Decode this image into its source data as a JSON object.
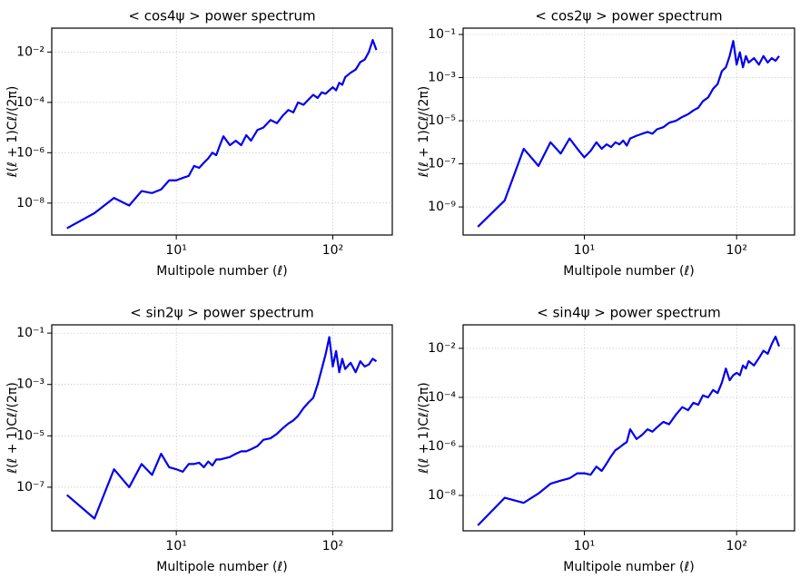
{
  "chart_data": [
    {
      "type": "line",
      "title": "< cos4ψ >  power spectrum",
      "xlabel": "Multipole number (ℓ)",
      "ylabel": "ℓ(ℓ + 1)Cℓ/(2π)",
      "log_x": true,
      "log_y": true,
      "grid": true,
      "x": [
        2,
        3,
        4,
        5,
        6,
        7,
        8,
        9,
        10,
        11,
        12,
        13,
        14,
        15,
        16,
        17,
        18,
        19,
        20,
        22,
        24,
        26,
        28,
        30,
        33,
        36,
        40,
        44,
        48,
        52,
        56,
        60,
        65,
        70,
        75,
        80,
        85,
        90,
        95,
        100,
        105,
        110,
        115,
        120,
        130,
        140,
        150,
        160,
        170,
        180,
        190
      ],
      "series": [
        {
          "name": "cos4",
          "color": "#0000ee",
          "values": [
            1e-09,
            4e-09,
            1.6e-08,
            8e-09,
            3e-08,
            2.5e-08,
            3.5e-08,
            8e-08,
            8e-08,
            1e-07,
            1.2e-07,
            3e-07,
            2.5e-07,
            4e-07,
            6e-07,
            1e-06,
            8e-07,
            2e-06,
            4.5e-06,
            2e-06,
            3e-06,
            2e-06,
            5e-06,
            3e-06,
            8e-06,
            1e-05,
            2e-05,
            1.5e-05,
            3e-05,
            5e-05,
            4e-05,
            0.0001,
            8e-05,
            0.00013,
            0.0002,
            0.00015,
            0.00025,
            0.00022,
            0.0003,
            0.0004,
            0.0003,
            0.0006,
            0.0005,
            0.001,
            0.0015,
            0.002,
            0.004,
            0.005,
            0.01,
            0.03,
            0.012
          ]
        }
      ],
      "xlim": [
        1.6,
        240
      ],
      "xticks": [
        {
          "value": 10,
          "label": "10¹"
        },
        {
          "value": 100,
          "label": "10²"
        }
      ],
      "ylim": [
        5.4e-10,
        0.089
      ],
      "yticks": [
        {
          "value": 0.01,
          "label": "10⁻²"
        },
        {
          "value": 0.0001,
          "label": "10⁻⁴"
        },
        {
          "value": 1e-06,
          "label": "10⁻⁶"
        },
        {
          "value": 1e-08,
          "label": "10⁻⁸"
        }
      ]
    },
    {
      "type": "line",
      "title": "< cos2ψ >  power spectrum",
      "xlabel": "Multipole number (ℓ)",
      "ylabel": "ℓ(ℓ + 1)Cℓ/(2π)",
      "log_x": true,
      "log_y": true,
      "grid": true,
      "x": [
        2,
        3,
        4,
        5,
        6,
        7,
        8,
        9,
        10,
        11,
        12,
        13,
        14,
        15,
        16,
        17,
        18,
        19,
        20,
        22,
        24,
        26,
        28,
        30,
        33,
        36,
        40,
        44,
        48,
        52,
        56,
        60,
        65,
        70,
        75,
        80,
        85,
        90,
        95,
        100,
        105,
        110,
        115,
        120,
        130,
        140,
        150,
        160,
        170,
        180,
        190
      ],
      "series": [
        {
          "name": "cos2",
          "color": "#0000ee",
          "values": [
            1.2e-10,
            2e-09,
            5e-07,
            8e-08,
            1e-06,
            3e-07,
            1.5e-06,
            5e-07,
            2e-07,
            4e-07,
            1e-06,
            5e-07,
            8e-07,
            6e-07,
            1e-06,
            8e-07,
            1.2e-06,
            7e-07,
            1.5e-06,
            2e-06,
            2.5e-06,
            3e-06,
            2.5e-06,
            4e-06,
            5e-06,
            8e-06,
            1e-05,
            1.5e-05,
            2e-05,
            3e-05,
            4e-05,
            8e-05,
            0.00012,
            0.0003,
            0.0005,
            0.002,
            0.003,
            0.01,
            0.05,
            0.004,
            0.015,
            0.003,
            0.01,
            0.005,
            0.008,
            0.004,
            0.01,
            0.005,
            0.008,
            0.006,
            0.01
          ]
        }
      ],
      "xlim": [
        1.6,
        240
      ],
      "xticks": [
        {
          "value": 10,
          "label": "10¹"
        },
        {
          "value": 100,
          "label": "10²"
        }
      ],
      "ylim": [
        5e-11,
        0.197
      ],
      "yticks": [
        {
          "value": 0.1,
          "label": "10⁻¹"
        },
        {
          "value": 0.001,
          "label": "10⁻³"
        },
        {
          "value": 1e-05,
          "label": "10⁻⁵"
        },
        {
          "value": 1e-07,
          "label": "10⁻⁷"
        },
        {
          "value": 1e-09,
          "label": "10⁻⁹"
        }
      ]
    },
    {
      "type": "line",
      "title": "< sin2ψ >  power spectrum",
      "xlabel": "Multipole number (ℓ)",
      "ylabel": "ℓ(ℓ + 1)Cℓ/(2π)",
      "log_x": true,
      "log_y": true,
      "grid": true,
      "x": [
        2,
        3,
        4,
        5,
        6,
        7,
        8,
        9,
        10,
        11,
        12,
        13,
        14,
        15,
        16,
        17,
        18,
        19,
        20,
        22,
        24,
        26,
        28,
        30,
        33,
        36,
        40,
        44,
        48,
        52,
        56,
        60,
        65,
        70,
        75,
        80,
        85,
        90,
        95,
        100,
        105,
        110,
        115,
        120,
        130,
        140,
        150,
        160,
        170,
        180,
        190
      ],
      "series": [
        {
          "name": "sin2",
          "color": "#0000ee",
          "values": [
            5e-08,
            6e-09,
            5e-07,
            1e-07,
            8e-07,
            3e-07,
            2e-06,
            6e-07,
            5e-07,
            4e-07,
            8e-07,
            8e-07,
            9e-07,
            6e-07,
            1e-06,
            7e-07,
            1.2e-06,
            1.2e-06,
            1.3e-06,
            1.5e-06,
            2e-06,
            2.5e-06,
            2.5e-06,
            3e-06,
            4e-06,
            7e-06,
            8e-06,
            1.2e-05,
            2e-05,
            3e-05,
            4e-05,
            6e-05,
            0.00012,
            0.0002,
            0.0003,
            0.001,
            0.004,
            0.015,
            0.07,
            0.005,
            0.02,
            0.003,
            0.01,
            0.004,
            0.007,
            0.003,
            0.008,
            0.005,
            0.006,
            0.01,
            0.008
          ]
        }
      ],
      "xlim": [
        1.6,
        240
      ],
      "xticks": [
        {
          "value": 10,
          "label": "10¹"
        },
        {
          "value": 100,
          "label": "10²"
        }
      ],
      "ylim": [
        2e-09,
        0.21
      ],
      "yticks": [
        {
          "value": 0.1,
          "label": "10⁻¹"
        },
        {
          "value": 0.001,
          "label": "10⁻³"
        },
        {
          "value": 1e-05,
          "label": "10⁻⁵"
        },
        {
          "value": 1e-07,
          "label": "10⁻⁷"
        }
      ]
    },
    {
      "type": "line",
      "title": "< sin4ψ >  power spectrum",
      "xlabel": "Multipole number (ℓ)",
      "ylabel": "ℓ(ℓ + 1)Cℓ/(2π)",
      "log_x": true,
      "log_y": true,
      "grid": true,
      "x": [
        2,
        3,
        4,
        5,
        6,
        7,
        8,
        9,
        10,
        11,
        12,
        13,
        14,
        15,
        16,
        17,
        18,
        19,
        20,
        22,
        24,
        26,
        28,
        30,
        33,
        36,
        40,
        44,
        48,
        52,
        56,
        60,
        65,
        70,
        75,
        80,
        85,
        90,
        95,
        100,
        105,
        110,
        115,
        120,
        130,
        140,
        150,
        160,
        170,
        180,
        190
      ],
      "series": [
        {
          "name": "sin4",
          "color": "#0000ee",
          "values": [
            6e-10,
            8e-09,
            5e-09,
            1.2e-08,
            3e-08,
            4e-08,
            5e-08,
            8e-08,
            8e-08,
            7e-08,
            1.5e-07,
            1e-07,
            2e-07,
            4e-07,
            7e-07,
            9e-07,
            1.2e-06,
            1.5e-06,
            5e-06,
            2e-06,
            3e-06,
            5e-06,
            4e-06,
            6e-06,
            1e-05,
            8e-06,
            2e-05,
            4e-05,
            3e-05,
            6e-05,
            5e-05,
            0.00012,
            0.0001,
            0.0002,
            0.00015,
            0.0004,
            0.0015,
            0.0005,
            0.0008,
            0.001,
            0.0008,
            0.002,
            0.0015,
            0.003,
            0.002,
            0.004,
            0.008,
            0.006,
            0.015,
            0.03,
            0.012
          ]
        }
      ],
      "xlim": [
        1.6,
        240
      ],
      "xticks": [
        {
          "value": 10,
          "label": "10¹"
        },
        {
          "value": 100,
          "label": "10²"
        }
      ],
      "ylim": [
        3.6e-10,
        0.091
      ],
      "yticks": [
        {
          "value": 0.01,
          "label": "10⁻²"
        },
        {
          "value": 0.0001,
          "label": "10⁻⁴"
        },
        {
          "value": 1e-06,
          "label": "10⁻⁶"
        },
        {
          "value": 1e-08,
          "label": "10⁻⁸"
        }
      ]
    }
  ]
}
